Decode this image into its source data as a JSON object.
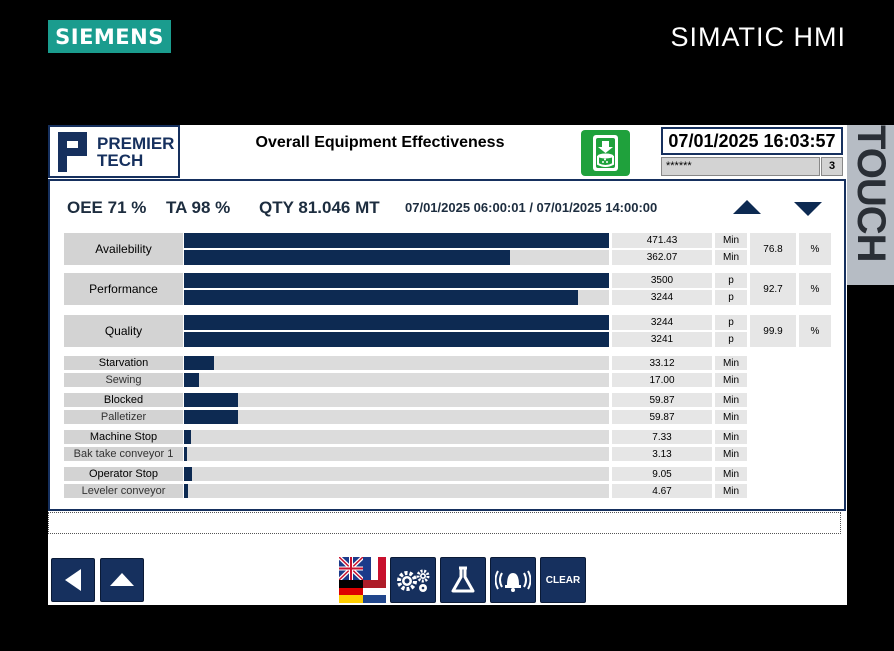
{
  "frame": {
    "brand": "SIEMENS",
    "product": "SIMATIC HMI",
    "side_label": "TOUCH"
  },
  "header": {
    "logo_line1": "PREMIER",
    "logo_line2": "TECH",
    "title": "Overall Equipment Effectiveness",
    "datetime": "07/01/2025 16:03:57",
    "user": "******",
    "user_level": "3"
  },
  "summary": {
    "oee": "OEE 71 %",
    "ta": "TA 98 %",
    "qty": "QTY 81.046 MT",
    "range": "07/01/2025 06:00:01 / 07/01/2025 14:00:00"
  },
  "kpis": [
    {
      "label": "Availebility",
      "pct": "76.8",
      "pct_unit": "%",
      "rows": [
        {
          "value": "471.43",
          "unit": "Min",
          "fill": 1.0
        },
        {
          "value": "362.07",
          "unit": "Min",
          "fill": 0.768
        }
      ]
    },
    {
      "label": "Performance",
      "pct": "92.7",
      "pct_unit": "%",
      "rows": [
        {
          "value": "3500",
          "unit": "p",
          "fill": 1.0
        },
        {
          "value": "3244",
          "unit": "p",
          "fill": 0.927
        }
      ]
    },
    {
      "label": "Quality",
      "pct": "99.9",
      "pct_unit": "%",
      "rows": [
        {
          "value": "3244",
          "unit": "p",
          "fill": 1.0
        },
        {
          "value": "3241",
          "unit": "p",
          "fill": 0.999
        }
      ]
    }
  ],
  "losses": [
    {
      "label": "Starvation",
      "value": "33.12",
      "unit": "Min",
      "fill": 0.07
    },
    {
      "label": "Sewing",
      "value": "17.00",
      "unit": "Min",
      "fill": 0.036
    },
    {
      "label": "Blocked",
      "value": "59.87",
      "unit": "Min",
      "fill": 0.127
    },
    {
      "label": "Palletizer",
      "value": "59.87",
      "unit": "Min",
      "fill": 0.127
    },
    {
      "label": "Machine Stop",
      "value": "7.33",
      "unit": "Min",
      "fill": 0.016
    },
    {
      "label": "Bak take conveyor 1",
      "value": "3.13",
      "unit": "Min",
      "fill": 0.007
    },
    {
      "label": "Operator Stop",
      "value": "9.05",
      "unit": "Min",
      "fill": 0.019
    },
    {
      "label": "Leveler conveyor",
      "value": "4.67",
      "unit": "Min",
      "fill": 0.01
    }
  ],
  "toolbar": {
    "clear_label": "CLEAR"
  },
  "icons": {
    "back": "triangle-left-icon",
    "home": "triangle-up-icon",
    "language": "flags-icon",
    "settings": "gears-icon",
    "lab": "flask-icon",
    "alarm": "alarm-bell-icon",
    "download": "download-icon"
  },
  "colors": {
    "bar": "#0d2a52",
    "siemens": "#1a9c8e",
    "nav": "#16305e",
    "download": "#1fa13c"
  }
}
